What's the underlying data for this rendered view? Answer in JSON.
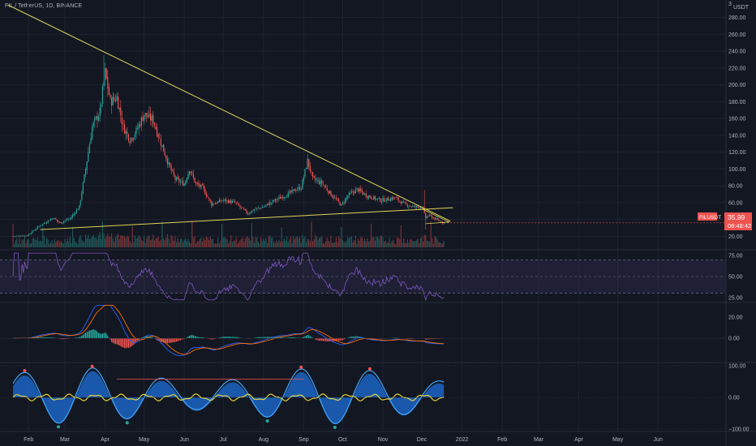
{
  "header": {
    "symbol_title": "FIL / TetherUS, 1D, BINANCE",
    "corner_number": "3",
    "currency": "USDT"
  },
  "price_tag": {
    "ticker": "FILUSDT",
    "price": "35.99",
    "countdown": "08:48:42"
  },
  "colors": {
    "background": "#131722",
    "grid": "#1e2330",
    "up": "#26a69a",
    "down": "#ef5350",
    "trendline": "#e0d55a",
    "rsi": "#7e57c2",
    "macd": "#2962ff",
    "signal": "#ff6d00",
    "osc_fill": "#1e6fd9",
    "osc_line": "#42a5f5",
    "yellow_line": "#e5d33a",
    "price_tag_bg": "#ef5350"
  },
  "chart_data": [
    {
      "type": "candlestick",
      "name": "price",
      "x_ticks": [
        "Feb",
        "Mar",
        "Apr",
        "May",
        "Jun",
        "Jul",
        "Aug",
        "Sep",
        "Oct",
        "Nov",
        "Dec",
        "2022",
        "Feb",
        "Mar",
        "Apr",
        "May",
        "Jun"
      ],
      "y_ticks": [
        "280.00",
        "260.00",
        "240.00",
        "220.00",
        "200.00",
        "180.00",
        "160.00",
        "140.00",
        "120.00",
        "100.00",
        "80.00",
        "60.00",
        "40.00",
        "20.00"
      ],
      "ylim": [
        5,
        295
      ],
      "approx_close_path": [
        [
          "2021-01-20",
          20
        ],
        [
          "2021-01-31",
          21
        ],
        [
          "2021-02-10",
          33
        ],
        [
          "2021-02-20",
          42
        ],
        [
          "2021-02-25",
          36
        ],
        [
          "2021-03-05",
          41
        ],
        [
          "2021-03-12",
          55
        ],
        [
          "2021-03-17",
          100
        ],
        [
          "2021-03-22",
          150
        ],
        [
          "2021-03-28",
          168
        ],
        [
          "2021-04-01",
          215
        ],
        [
          "2021-04-05",
          180
        ],
        [
          "2021-04-10",
          185
        ],
        [
          "2021-04-15",
          150
        ],
        [
          "2021-04-20",
          135
        ],
        [
          "2021-04-25",
          145
        ],
        [
          "2021-05-01",
          165
        ],
        [
          "2021-05-08",
          158
        ],
        [
          "2021-05-12",
          140
        ],
        [
          "2021-05-20",
          105
        ],
        [
          "2021-05-25",
          88
        ],
        [
          "2021-06-01",
          82
        ],
        [
          "2021-06-05",
          100
        ],
        [
          "2021-06-10",
          82
        ],
        [
          "2021-06-15",
          78
        ],
        [
          "2021-06-22",
          58
        ],
        [
          "2021-07-01",
          63
        ],
        [
          "2021-07-10",
          60
        ],
        [
          "2021-07-20",
          47
        ],
        [
          "2021-07-25",
          52
        ],
        [
          "2021-08-01",
          55
        ],
        [
          "2021-08-10",
          63
        ],
        [
          "2021-08-20",
          70
        ],
        [
          "2021-08-25",
          75
        ],
        [
          "2021-08-30",
          78
        ],
        [
          "2021-09-04",
          110
        ],
        [
          "2021-09-08",
          88
        ],
        [
          "2021-09-15",
          83
        ],
        [
          "2021-09-22",
          70
        ],
        [
          "2021-09-30",
          57
        ],
        [
          "2021-10-05",
          68
        ],
        [
          "2021-10-12",
          76
        ],
        [
          "2021-10-20",
          68
        ],
        [
          "2021-10-30",
          63
        ],
        [
          "2021-11-05",
          64
        ],
        [
          "2021-11-10",
          66
        ],
        [
          "2021-11-18",
          58
        ],
        [
          "2021-11-25",
          55
        ],
        [
          "2021-12-01",
          55
        ],
        [
          "2021-12-04",
          42
        ],
        [
          "2021-12-06",
          45
        ],
        [
          "2021-12-12",
          40
        ],
        [
          "2021-12-18",
          36
        ]
      ],
      "trendlines": {
        "descending_start": [
          "2021-01-16",
          295
        ],
        "descending_end": [
          "2021-12-23",
          38
        ],
        "ascending_start": [
          "2021-02-10",
          28
        ],
        "ascending_end": [
          "2021-12-25",
          54
        ]
      },
      "last_price": 35.99
    },
    {
      "type": "line",
      "name": "RSI",
      "y_ticks": [
        "75.00",
        "50.00",
        "25.00"
      ],
      "levels": [
        70,
        50,
        30
      ],
      "ylim": [
        20,
        80
      ]
    },
    {
      "type": "line",
      "name": "MACD",
      "y_ticks": [
        "20.00",
        "0.00"
      ],
      "ylim": [
        -22,
        33
      ]
    },
    {
      "type": "area",
      "name": "oscillator",
      "y_ticks": [
        "100.00",
        "0.00",
        "−100.00"
      ],
      "ylim": [
        -105,
        108
      ]
    }
  ]
}
